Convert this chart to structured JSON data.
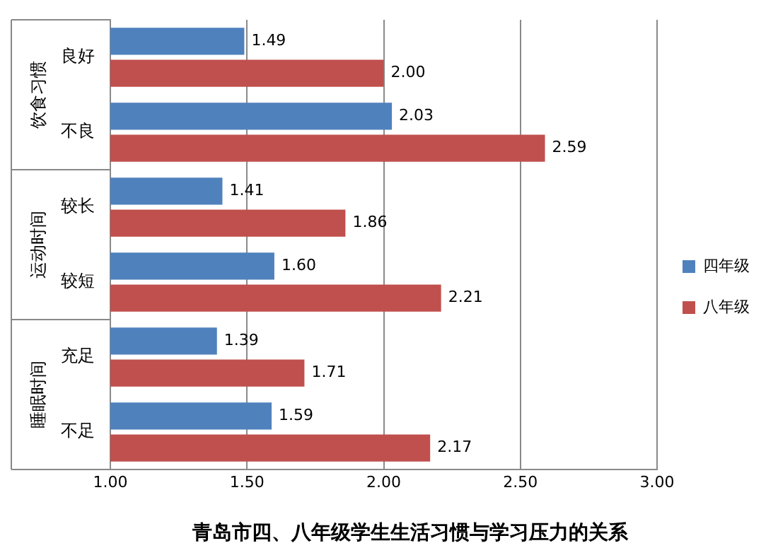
{
  "chart_data": {
    "type": "bar",
    "orientation": "horizontal",
    "title": "青岛市四、八年级学生生活习惯与学习压力的关系",
    "categories": [
      "良好",
      "不良",
      "较长",
      "较短",
      "充足",
      "不足"
    ],
    "annotations": [
      "饮食习惯",
      "运动时间",
      "睡眠时间"
    ],
    "series": [
      {
        "name": "四年级",
        "color": "#4f81bd",
        "values": [
          1.49,
          2.03,
          1.41,
          1.6,
          1.39,
          1.59
        ],
        "value_labels": [
          "1.49",
          "2.03",
          "1.41",
          "1.60",
          "1.39",
          "1.59"
        ]
      },
      {
        "name": "八年级",
        "color": "#c0504d",
        "values": [
          2,
          2.59,
          1.86,
          2.21,
          1.71,
          2.17
        ],
        "value_labels": [
          "2.00",
          "2.59",
          "1.86",
          "2.21",
          "1.71",
          "2.17"
        ]
      }
    ],
    "xlim": [
      1,
      3
    ],
    "xticks": [
      {
        "value": 1,
        "label": "1.00"
      },
      {
        "value": 1.5,
        "label": "1.50"
      },
      {
        "value": 2,
        "label": "2.00"
      },
      {
        "value": 2.5,
        "label": "2.50"
      },
      {
        "value": 3,
        "label": "3.00"
      }
    ],
    "grid": "x",
    "legend": "right"
  }
}
